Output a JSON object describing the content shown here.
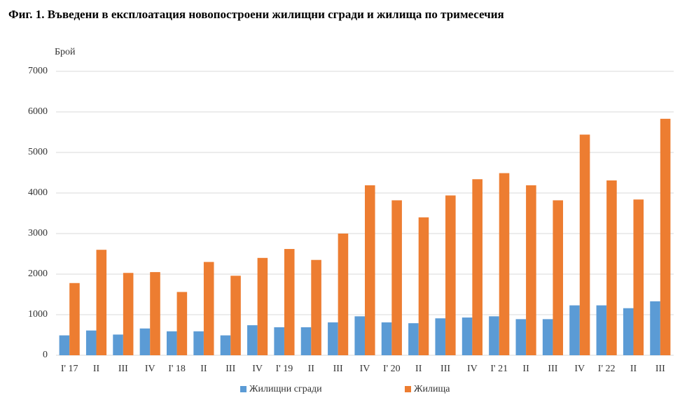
{
  "chart_data": {
    "type": "bar",
    "title": "Фиг. 1. Въведени в експлоатация новопостроени жилищни сгради и жилища по тримесечия",
    "y_label": "Брой",
    "categories": [
      "І' 17",
      "ІІ",
      "ІІІ",
      "ІV",
      "І' 18",
      "ІІ",
      "ІІІ",
      "ІV",
      "І' 19",
      "ІІ",
      "ІІІ",
      "ІV",
      "І' 20",
      "ІІ",
      "ІІІ",
      "ІV",
      "І' 21",
      "ІІ",
      "ІІІ",
      "ІV",
      "І' 22",
      "ІІ",
      "ІІІ"
    ],
    "series": [
      {
        "name": "Жилищни сгради",
        "color": "#5b9bd5",
        "values": [
          490,
          610,
          510,
          660,
          590,
          590,
          490,
          740,
          690,
          690,
          810,
          960,
          810,
          790,
          910,
          930,
          960,
          890,
          890,
          1230,
          1230,
          1160,
          1330
        ]
      },
      {
        "name": "Жилища",
        "color": "#ed7d31",
        "values": [
          1780,
          2600,
          2030,
          2050,
          1560,
          2300,
          1960,
          2400,
          2620,
          2350,
          3000,
          4190,
          3820,
          3400,
          3940,
          4340,
          4490,
          4190,
          3820,
          5440,
          4310,
          3840,
          5830
        ]
      }
    ],
    "ylim": [
      0,
      7000
    ],
    "yticks": [
      0,
      1000,
      2000,
      3000,
      4000,
      5000,
      6000,
      7000
    ],
    "grid": true,
    "legend": "bottom"
  }
}
